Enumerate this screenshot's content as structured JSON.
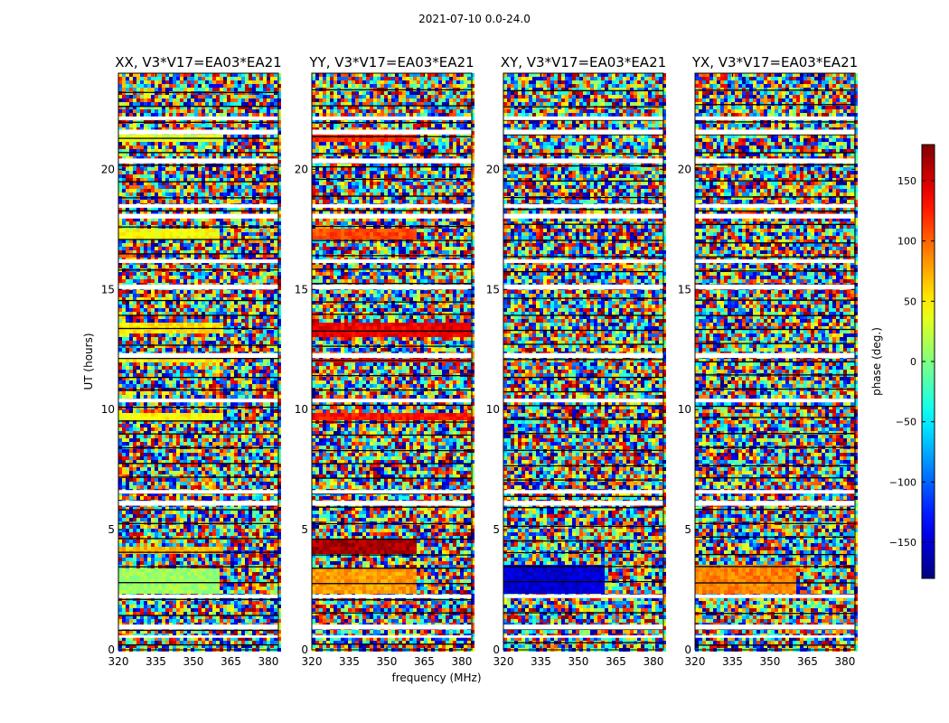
{
  "chart_data": {
    "type": "heatmap",
    "title": "2021-07-10 0.0-24.0",
    "xlabel": "frequency (MHz)",
    "ylabel": "UT (hours)",
    "xlim": [
      320,
      384
    ],
    "ylim": [
      0,
      24
    ],
    "xticks": [
      320,
      335,
      350,
      365,
      380
    ],
    "xtick_labels": [
      "320",
      "335",
      "350",
      "365",
      "380"
    ],
    "yticks": [
      0,
      5,
      10,
      15,
      20
    ],
    "ytick_labels": [
      "0",
      "5",
      "10",
      "15",
      "20"
    ],
    "panels": [
      {
        "title": "XX, V3*V17=EA03*EA21",
        "coherent_bands": [
          {
            "ut_start": 2.3,
            "ut_end": 3.4,
            "f_start": 320,
            "f_end": 360,
            "phase": 10
          },
          {
            "ut_start": 21.2,
            "ut_end": 21.5,
            "f_start": 320,
            "f_end": 362,
            "phase": 35
          },
          {
            "ut_start": 17.1,
            "ut_end": 17.6,
            "f_start": 320,
            "f_end": 360,
            "phase": 45
          },
          {
            "ut_start": 13.2,
            "ut_end": 13.6,
            "f_start": 320,
            "f_end": 362,
            "phase": 55
          },
          {
            "ut_start": 12.0,
            "ut_end": 12.3,
            "f_start": 320,
            "f_end": 362,
            "phase": 50
          },
          {
            "ut_start": 9.6,
            "ut_end": 9.8,
            "f_start": 320,
            "f_end": 362,
            "phase": 45
          },
          {
            "ut_start": 4.0,
            "ut_end": 4.3,
            "f_start": 320,
            "f_end": 362,
            "phase": 70
          }
        ]
      },
      {
        "title": "YY, V3*V17=EA03*EA21",
        "coherent_bands": [
          {
            "ut_start": 2.3,
            "ut_end": 3.4,
            "f_start": 320,
            "f_end": 362,
            "phase": 80
          },
          {
            "ut_start": 21.2,
            "ut_end": 21.5,
            "f_start": 320,
            "f_end": 362,
            "phase": 120
          },
          {
            "ut_start": 17.1,
            "ut_end": 17.6,
            "f_start": 320,
            "f_end": 362,
            "phase": 110
          },
          {
            "ut_start": 13.0,
            "ut_end": 13.6,
            "f_start": 320,
            "f_end": 384,
            "phase": 140
          },
          {
            "ut_start": 11.9,
            "ut_end": 12.1,
            "f_start": 320,
            "f_end": 384,
            "phase": 130
          },
          {
            "ut_start": 9.6,
            "ut_end": 9.8,
            "f_start": 320,
            "f_end": 384,
            "phase": 130
          },
          {
            "ut_start": 4.0,
            "ut_end": 4.6,
            "f_start": 320,
            "f_end": 362,
            "phase": 165
          }
        ]
      },
      {
        "title": "XY, V3*V17=EA03*EA21",
        "coherent_bands": [
          {
            "ut_start": 2.4,
            "ut_end": 3.6,
            "f_start": 320,
            "f_end": 360,
            "phase": -150
          }
        ]
      },
      {
        "title": "YX, V3*V17=EA03*EA21",
        "coherent_bands": [
          {
            "ut_start": 2.3,
            "ut_end": 3.6,
            "f_start": 320,
            "f_end": 360,
            "phase": 90
          }
        ]
      }
    ],
    "gaps_ut": [
      [
        0.5,
        0.6
      ],
      [
        0.85,
        1.05
      ],
      [
        2.15,
        2.3
      ],
      [
        6.0,
        6.2
      ],
      [
        6.5,
        6.65
      ],
      [
        10.3,
        10.45
      ],
      [
        12.15,
        12.35
      ],
      [
        15.0,
        15.2
      ],
      [
        16.1,
        16.25
      ],
      [
        17.95,
        18.15
      ],
      [
        18.4,
        18.55
      ],
      [
        20.25,
        20.45
      ],
      [
        21.45,
        21.65
      ],
      [
        22.05,
        22.2
      ]
    ],
    "colorbar": {
      "label": "phase (deg.)",
      "range": [
        -180,
        180
      ],
      "ticks": [
        -150,
        -100,
        -50,
        0,
        50,
        100,
        150
      ],
      "tick_labels": [
        "−150",
        "−100",
        "−50",
        "0",
        "50",
        "100",
        "150"
      ],
      "colormap": "jet"
    }
  }
}
